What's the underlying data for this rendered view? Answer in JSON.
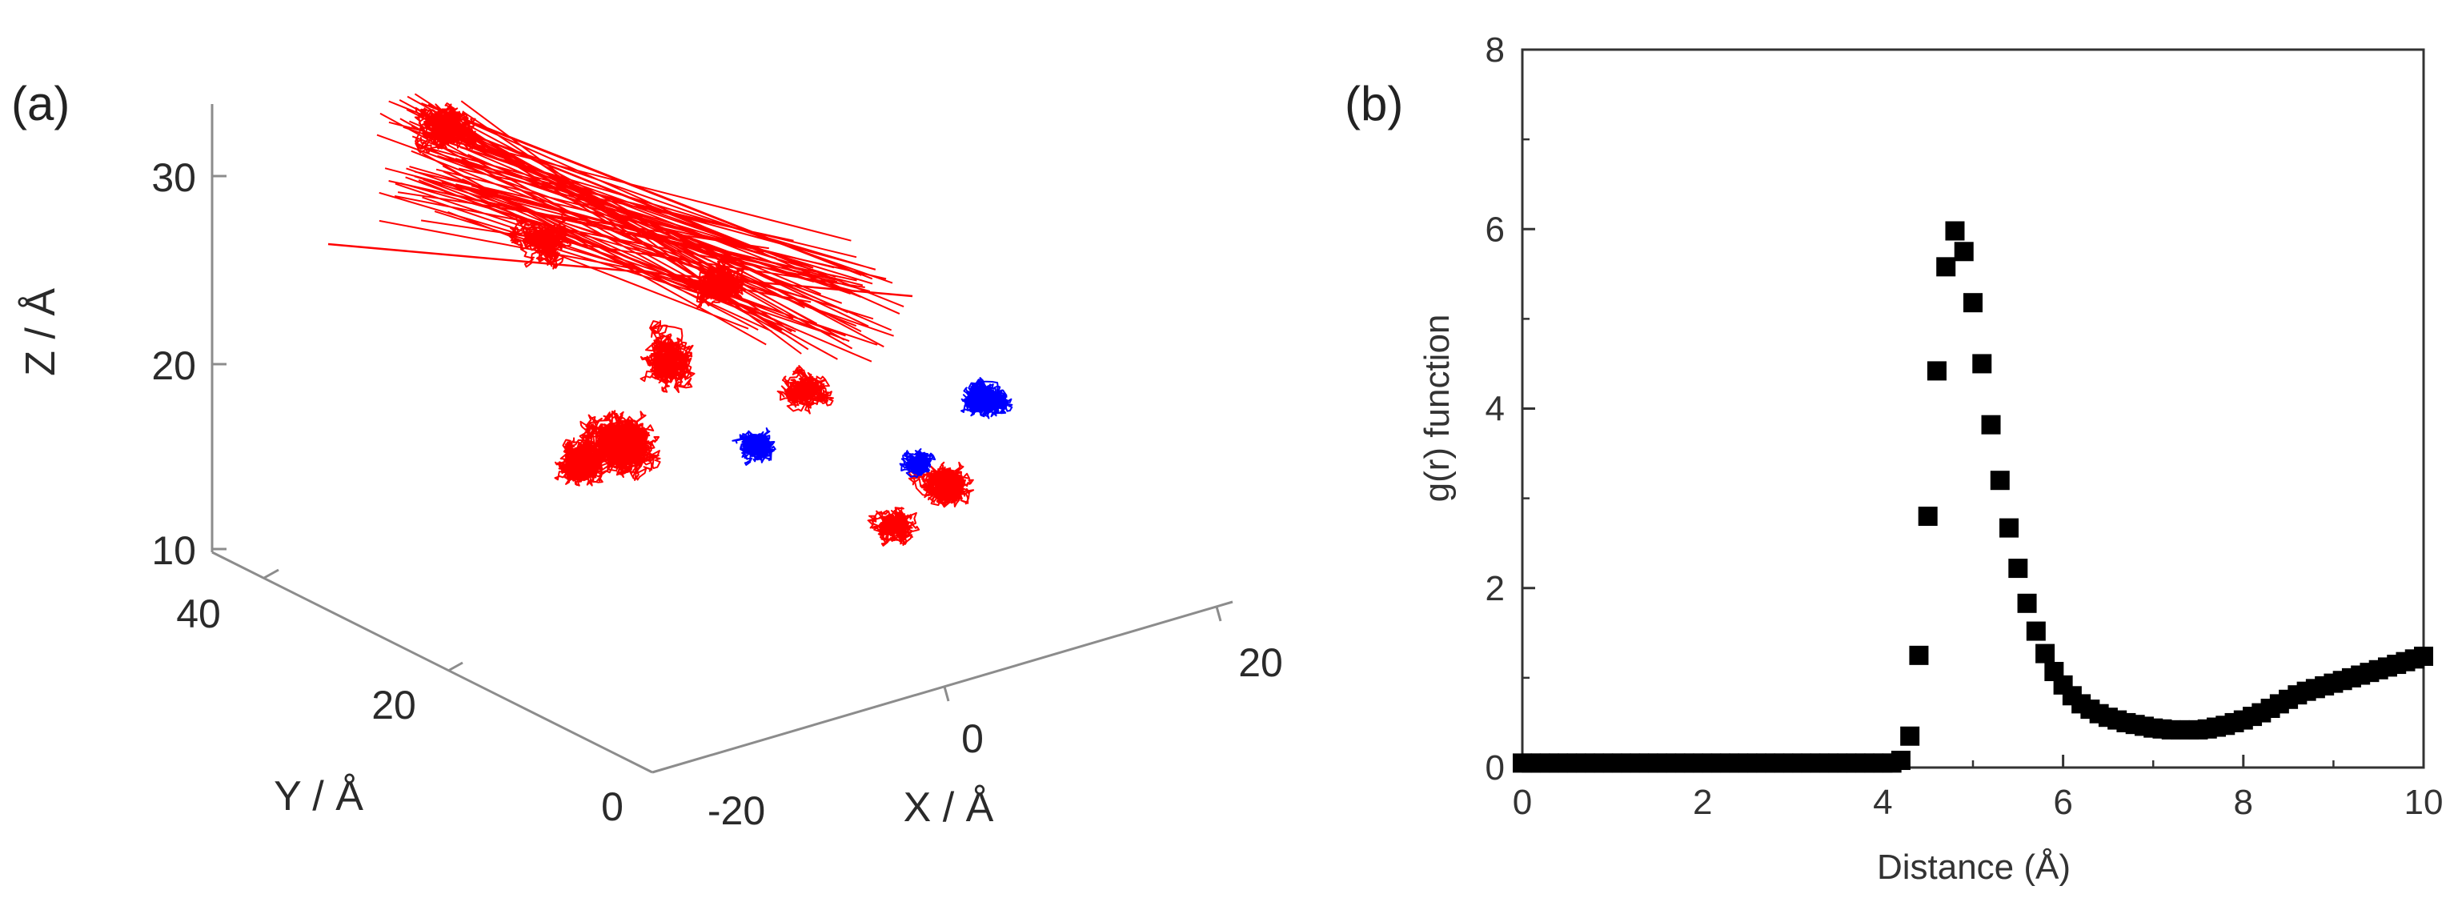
{
  "panels": {
    "a": {
      "label": "(a)",
      "chart_data": {
        "type": "trajectory-3d",
        "xlabel": "X / Å",
        "ylabel": "Y / Å",
        "zlabel": "Z / Å",
        "x_ticks": [
          "-20",
          "0",
          "20"
        ],
        "y_ticks": [
          "0",
          "20",
          "40"
        ],
        "z_ticks": [
          "10",
          "20",
          "30"
        ],
        "series": [
          {
            "color": "#ff0000"
          },
          {
            "color": "#0000ff"
          }
        ]
      }
    },
    "b": {
      "label": "(b)",
      "chart_data": {
        "type": "scatter",
        "xlabel": "Distance (Å)",
        "ylabel": "g(r) function",
        "xlim": [
          0,
          10
        ],
        "ylim": [
          0,
          8
        ],
        "x_ticks": [
          "0",
          "2",
          "4",
          "6",
          "8",
          "10"
        ],
        "y_ticks": [
          "0",
          "2",
          "4",
          "6",
          "8"
        ],
        "marker": "square",
        "marker_color": "#000000",
        "x": [
          0.0,
          0.1,
          0.2,
          0.3,
          0.4,
          0.5,
          0.6,
          0.7,
          0.8,
          0.9,
          1.0,
          1.1,
          1.2,
          1.3,
          1.4,
          1.5,
          1.6,
          1.7,
          1.8,
          1.9,
          2.0,
          2.1,
          2.2,
          2.3,
          2.4,
          2.5,
          2.6,
          2.7,
          2.8,
          2.9,
          3.0,
          3.1,
          3.2,
          3.3,
          3.4,
          3.5,
          3.6,
          3.7,
          3.8,
          3.9,
          4.0,
          4.1,
          4.2,
          4.3,
          4.4,
          4.5,
          4.6,
          4.7,
          4.8,
          4.9,
          5.0,
          5.1,
          5.2,
          5.3,
          5.4,
          5.5,
          5.6,
          5.7,
          5.8,
          5.9,
          6.0,
          6.1,
          6.2,
          6.3,
          6.4,
          6.5,
          6.6,
          6.7,
          6.8,
          6.9,
          7.0,
          7.1,
          7.2,
          7.3,
          7.4,
          7.5,
          7.6,
          7.7,
          7.8,
          7.9,
          8.0,
          8.1,
          8.2,
          8.3,
          8.4,
          8.5,
          8.6,
          8.7,
          8.8,
          8.9,
          9.0,
          9.1,
          9.2,
          9.3,
          9.4,
          9.5,
          9.6,
          9.7,
          9.8,
          9.9,
          10.0
        ],
        "y": [
          0.05,
          0.05,
          0.05,
          0.05,
          0.05,
          0.05,
          0.05,
          0.05,
          0.05,
          0.05,
          0.05,
          0.05,
          0.05,
          0.05,
          0.05,
          0.05,
          0.05,
          0.05,
          0.05,
          0.05,
          0.05,
          0.05,
          0.05,
          0.05,
          0.05,
          0.05,
          0.05,
          0.05,
          0.05,
          0.05,
          0.05,
          0.05,
          0.05,
          0.05,
          0.05,
          0.05,
          0.05,
          0.05,
          0.05,
          0.05,
          0.05,
          0.05,
          0.08,
          0.35,
          1.25,
          2.8,
          4.42,
          5.58,
          5.98,
          5.75,
          5.18,
          4.5,
          3.82,
          3.2,
          2.67,
          2.22,
          1.83,
          1.52,
          1.27,
          1.07,
          0.92,
          0.8,
          0.71,
          0.65,
          0.6,
          0.56,
          0.53,
          0.5,
          0.48,
          0.46,
          0.44,
          0.43,
          0.42,
          0.42,
          0.42,
          0.42,
          0.43,
          0.45,
          0.47,
          0.5,
          0.53,
          0.57,
          0.61,
          0.66,
          0.71,
          0.76,
          0.81,
          0.85,
          0.88,
          0.91,
          0.94,
          0.97,
          1.0,
          1.03,
          1.06,
          1.09,
          1.12,
          1.15,
          1.18,
          1.21,
          1.24
        ]
      }
    }
  }
}
